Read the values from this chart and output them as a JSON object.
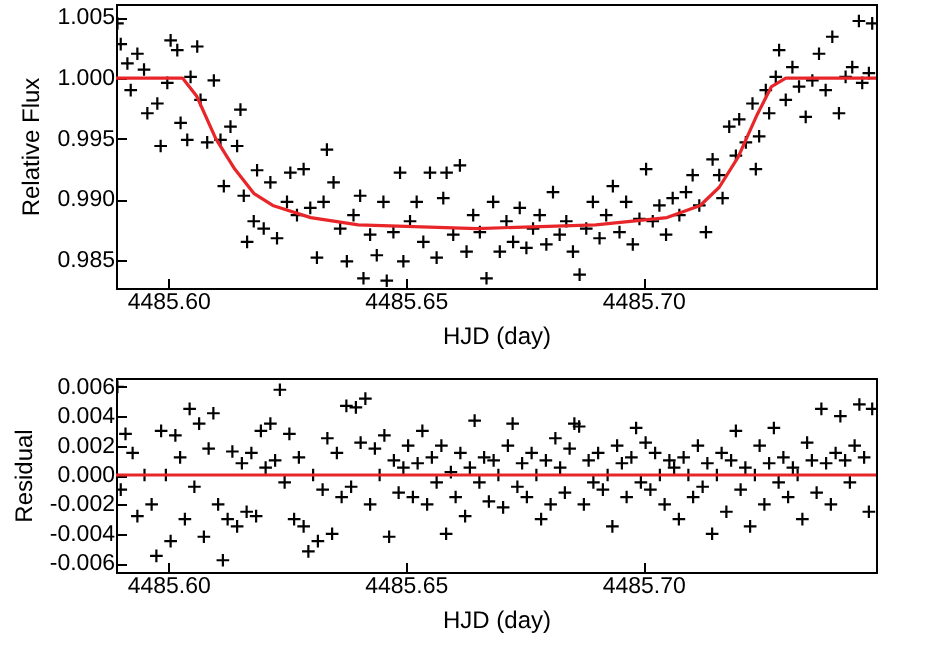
{
  "chart_data": [
    {
      "type": "scatter",
      "ylabel": "Relative Flux",
      "xlabel": "HJD (day)",
      "grid": false,
      "xlim": [
        4485.589,
        4485.749
      ],
      "xticks": [
        {
          "value": 4485.6,
          "label": "4485.60"
        },
        {
          "value": 4485.65,
          "label": "4485.65"
        },
        {
          "value": 4485.7,
          "label": "4485.70"
        }
      ],
      "ylim": [
        0.9827,
        1.0061
      ],
      "yticks": [
        {
          "value": 0.985,
          "label": "0.985"
        },
        {
          "value": 0.99,
          "label": "0.990"
        },
        {
          "value": 0.995,
          "label": "0.995"
        },
        {
          "value": 1.0,
          "label": "1.000"
        },
        {
          "value": 1.005,
          "label": "1.005"
        }
      ],
      "series": [
        {
          "marker": "cross",
          "color": "#000000",
          "x": [
            4485.5893,
            4485.59,
            4485.5914,
            4485.5921,
            4485.5935,
            4485.5949,
            4485.5956,
            4485.5977,
            4485.5984,
            4485.5998,
            4485.6005,
            4485.6019,
            4485.6026,
            4485.604,
            4485.6047,
            4485.6061,
            4485.6068,
            4485.6082,
            4485.6096,
            4485.611,
            4485.6117,
            4485.6131,
            4485.6145,
            4485.6152,
            4485.6159,
            4485.6166,
            4485.618,
            4485.6187,
            4485.6201,
            4485.6215,
            4485.6229,
            4485.625,
            4485.6257,
            4485.6271,
            4485.6285,
            4485.6299,
            4485.6313,
            4485.6327,
            4485.6334,
            4485.6348,
            4485.6362,
            4485.6376,
            4485.639,
            4485.6404,
            4485.6411,
            4485.6425,
            4485.6439,
            4485.6453,
            4485.646,
            4485.6474,
            4485.6488,
            4485.6495,
            4485.6509,
            4485.6523,
            4485.6537,
            4485.6551,
            4485.6565,
            4485.6579,
            4485.6586,
            4485.66,
            4485.6614,
            4485.6628,
            4485.6642,
            4485.6656,
            4485.667,
            4485.6684,
            4485.6698,
            4485.6712,
            4485.6726,
            4485.674,
            4485.6754,
            4485.6768,
            4485.6782,
            4485.6796,
            4485.681,
            4485.6824,
            4485.6838,
            4485.6852,
            4485.6866,
            4485.688,
            4485.6894,
            4485.6908,
            4485.6922,
            4485.6936,
            4485.695,
            4485.6964,
            4485.6978,
            4485.6992,
            4485.7006,
            4485.702,
            4485.7034,
            4485.7048,
            4485.7062,
            4485.7076,
            4485.709,
            4485.7104,
            4485.7118,
            4485.7132,
            4485.7146,
            4485.716,
            4485.7167,
            4485.7181,
            4485.7195,
            4485.7202,
            4485.7216,
            4485.723,
            4485.7237,
            4485.7244,
            4485.7258,
            4485.7265,
            4485.7279,
            4485.7286,
            4485.73,
            4485.7314,
            4485.7328,
            4485.7342,
            4485.7356,
            4485.737,
            4485.7384,
            4485.7398,
            4485.7412,
            4485.7426,
            4485.744,
            4485.7454,
            4485.7461,
            4485.7475,
            4485.7482
          ],
          "values": [
            1.0045,
            1.0028,
            1.0012,
            0.999,
            1.002,
            1.0007,
            0.9971,
            0.9979,
            0.9944,
            0.9996,
            1.0031,
            1.0023,
            0.9963,
            0.9949,
            1.0001,
            1.0026,
            0.9982,
            0.9947,
            0.9998,
            0.9949,
            0.9911,
            0.996,
            0.9944,
            0.9974,
            0.9903,
            0.9865,
            0.9882,
            0.9924,
            0.9876,
            0.9914,
            0.9868,
            0.9898,
            0.9922,
            0.9887,
            0.9925,
            0.9893,
            0.9852,
            0.9898,
            0.9941,
            0.9914,
            0.9876,
            0.9849,
            0.9887,
            0.9903,
            0.9835,
            0.9871,
            0.9854,
            0.9898,
            0.9833,
            0.9873,
            0.9922,
            0.9849,
            0.9882,
            0.9898,
            0.9865,
            0.9922,
            0.9852,
            0.9901,
            0.9922,
            0.9871,
            0.9928,
            0.9857,
            0.9887,
            0.9873,
            0.9835,
            0.9898,
            0.9857,
            0.9882,
            0.9865,
            0.9893,
            0.986,
            0.9876,
            0.9887,
            0.9863,
            0.9906,
            0.9871,
            0.9882,
            0.9857,
            0.9838,
            0.9876,
            0.9898,
            0.9868,
            0.9887,
            0.9911,
            0.9873,
            0.9898,
            0.9863,
            0.9884,
            0.9925,
            0.9882,
            0.9895,
            0.9871,
            0.9901,
            0.9887,
            0.9906,
            0.992,
            0.9895,
            0.9873,
            0.9933,
            0.992,
            0.9901,
            0.996,
            0.9936,
            0.9966,
            0.9947,
            0.9979,
            0.9925,
            0.9952,
            0.999,
            0.9971,
            1.0001,
            1.0023,
            0.9982,
            1.0009,
            0.9993,
            0.9968,
            0.9998,
            1.002,
            0.999,
            1.0034,
            0.9971,
            1.0001,
            1.0009,
            1.0047,
            0.9996,
            1.0004,
            1.0045
          ]
        },
        {
          "type": "line",
          "color": "#e8262a",
          "x": [
            4485.589,
            4485.603,
            4485.606,
            4485.61,
            4485.614,
            4485.618,
            4485.622,
            4485.63,
            4485.64,
            4485.665,
            4485.69,
            4485.705,
            4485.712,
            4485.716,
            4485.72,
            4485.724,
            4485.727,
            4485.73,
            4485.749
          ],
          "values": [
            1.0,
            1.0,
            0.9985,
            0.995,
            0.9925,
            0.9905,
            0.9895,
            0.9885,
            0.9879,
            0.9876,
            0.9879,
            0.9885,
            0.9895,
            0.991,
            0.9935,
            0.997,
            0.9993,
            1.0,
            1.0
          ]
        }
      ]
    },
    {
      "type": "scatter",
      "ylabel": "Residual",
      "xlabel": "HJD (day)",
      "grid": false,
      "xlim": [
        4485.589,
        4485.749
      ],
      "xticks": [
        {
          "value": 4485.6,
          "label": "4485.60"
        },
        {
          "value": 4485.65,
          "label": "4485.65"
        },
        {
          "value": 4485.7,
          "label": "4485.70"
        }
      ],
      "ylim": [
        -0.0066,
        0.0066
      ],
      "yticks": [
        {
          "value": -0.006,
          "label": "-0.006"
        },
        {
          "value": -0.004,
          "label": "-0.004"
        },
        {
          "value": -0.002,
          "label": "-0.002"
        },
        {
          "value": 0,
          "label": "0.000"
        },
        {
          "value": 0.002,
          "label": "0.002"
        },
        {
          "value": 0.004,
          "label": "0.004"
        },
        {
          "value": 0.006,
          "label": "0.006"
        }
      ],
      "ref_lines": [
        {
          "axis": "y",
          "value": 0,
          "color": "#e8262a"
        }
      ],
      "series": [
        {
          "marker": "cross",
          "color": "#000000",
          "x": [
            4485.5893,
            4485.59,
            4485.591,
            4485.5925,
            4485.5935,
            4485.595,
            4485.5965,
            4485.5975,
            4485.5985,
            4485.5995,
            4485.6005,
            4485.6015,
            4485.6025,
            4485.6035,
            4485.6045,
            4485.6055,
            4485.6065,
            4485.6075,
            4485.6085,
            4485.6095,
            4485.6105,
            4485.6115,
            4485.6125,
            4485.6135,
            4485.6145,
            4485.6155,
            4485.6165,
            4485.6175,
            4485.6185,
            4485.6195,
            4485.6205,
            4485.6215,
            4485.6225,
            4485.6235,
            4485.6245,
            4485.6255,
            4485.6265,
            4485.6275,
            4485.6285,
            4485.6295,
            4485.6305,
            4485.6315,
            4485.6325,
            4485.6335,
            4485.6345,
            4485.6355,
            4485.6365,
            4485.6375,
            4485.6385,
            4485.6395,
            4485.6405,
            4485.6415,
            4485.6425,
            4485.6435,
            4485.6445,
            4485.6455,
            4485.6465,
            4485.6475,
            4485.6485,
            4485.6495,
            4485.6505,
            4485.6515,
            4485.6525,
            4485.6535,
            4485.6545,
            4485.6555,
            4485.6565,
            4485.6575,
            4485.6585,
            4485.6595,
            4485.6605,
            4485.6615,
            4485.6625,
            4485.6635,
            4485.6645,
            4485.6655,
            4485.6665,
            4485.6675,
            4485.6685,
            4485.6695,
            4485.6705,
            4485.6715,
            4485.6725,
            4485.6735,
            4485.6745,
            4485.6755,
            4485.6765,
            4485.6775,
            4485.6785,
            4485.6795,
            4485.6805,
            4485.6815,
            4485.6825,
            4485.6835,
            4485.6845,
            4485.6855,
            4485.6865,
            4485.6875,
            4485.6885,
            4485.6895,
            4485.6905,
            4485.6915,
            4485.6925,
            4485.6935,
            4485.6945,
            4485.6955,
            4485.6965,
            4485.6975,
            4485.6985,
            4485.6995,
            4485.7005,
            4485.7015,
            4485.7025,
            4485.7035,
            4485.7045,
            4485.7055,
            4485.7065,
            4485.7075,
            4485.7085,
            4485.7095,
            4485.7105,
            4485.7115,
            4485.7125,
            4485.7135,
            4485.7145,
            4485.7155,
            4485.7165,
            4485.7175,
            4485.7185,
            4485.7195,
            4485.7205,
            4485.7215,
            4485.7225,
            4485.7235,
            4485.7245,
            4485.7255,
            4485.7265,
            4485.7275,
            4485.7285,
            4485.7295,
            4485.7305,
            4485.7315,
            4485.7325,
            4485.7335,
            4485.7345,
            4485.7355,
            4485.7365,
            4485.7375,
            4485.7385,
            4485.7395,
            4485.7405,
            4485.7415,
            4485.7425,
            4485.7435,
            4485.7445,
            4485.7455,
            4485.7465,
            4485.7475,
            4485.7482
          ],
          "values": [
            0.006,
            -0.001,
            0.0028,
            0.0015,
            -0.0028,
            0.0,
            -0.002,
            -0.0055,
            0.003,
            0.0,
            -0.0045,
            0.0027,
            0.0012,
            -0.003,
            0.0045,
            -0.0008,
            0.0035,
            -0.0042,
            0.0018,
            0.0042,
            -0.002,
            -0.0058,
            -0.003,
            0.0016,
            -0.0035,
            0.0008,
            -0.0025,
            0.0015,
            -0.0028,
            0.003,
            0.0005,
            0.0035,
            0.001,
            0.0058,
            -0.0005,
            0.0028,
            -0.003,
            0.0012,
            -0.0035,
            -0.0052,
            0.0,
            -0.0045,
            -0.001,
            0.0025,
            -0.004,
            0.0015,
            -0.0015,
            0.0047,
            -0.0008,
            0.0046,
            0.0022,
            0.0052,
            -0.002,
            0.0018,
            0.0,
            0.0027,
            -0.0042,
            0.001,
            -0.0012,
            0.0005,
            0.002,
            -0.0015,
            0.0008,
            0.003,
            -0.002,
            0.0012,
            -0.0005,
            0.002,
            -0.004,
            0.0002,
            -0.0015,
            0.0015,
            -0.0028,
            0.0005,
            0.0037,
            -0.0005,
            0.0012,
            -0.0018,
            0.001,
            0.0,
            -0.0022,
            0.002,
            0.0035,
            -0.0008,
            0.0008,
            -0.0015,
            0.0015,
            0.0,
            -0.003,
            0.001,
            -0.002,
            0.0025,
            0.0005,
            -0.0012,
            0.0018,
            0.0035,
            0.0033,
            -0.002,
            0.001,
            -0.0005,
            0.0015,
            -0.001,
            0.0,
            -0.0035,
            0.002,
            0.0008,
            -0.0015,
            0.0012,
            0.0032,
            -0.0005,
            0.0022,
            -0.001,
            0.0015,
            0.0,
            -0.002,
            0.001,
            0.0005,
            -0.003,
            0.0012,
            0.0,
            -0.0015,
            0.002,
            -0.0008,
            0.0008,
            -0.004,
            0.0,
            0.0015,
            -0.0025,
            0.001,
            0.003,
            -0.001,
            0.0005,
            -0.0035,
            0.0,
            0.002,
            -0.002,
            0.0008,
            0.0032,
            -0.0005,
            0.0012,
            -0.0015,
            0.0005,
            0.0,
            -0.003,
            0.0022,
            0.001,
            -0.0012,
            0.0045,
            0.0008,
            -0.002,
            0.0015,
            0.004,
            0.001,
            -0.0005,
            0.002,
            0.0048,
            0.0012,
            -0.0025,
            0.0045
          ]
        }
      ]
    }
  ]
}
